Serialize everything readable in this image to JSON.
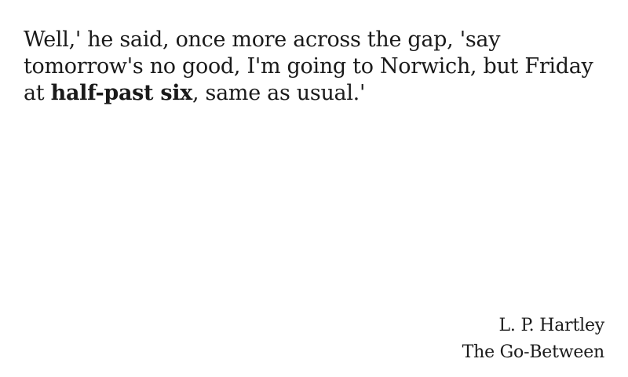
{
  "quote": {
    "before": "Well,' he said, once more across the gap, 'say tomorrow's no good, I'm going to Norwich, but Friday at ",
    "emphasis": "half-past six",
    "after": ", same as usual.'"
  },
  "attribution": {
    "author": "L. P. Hartley",
    "work": "The Go-Between"
  }
}
